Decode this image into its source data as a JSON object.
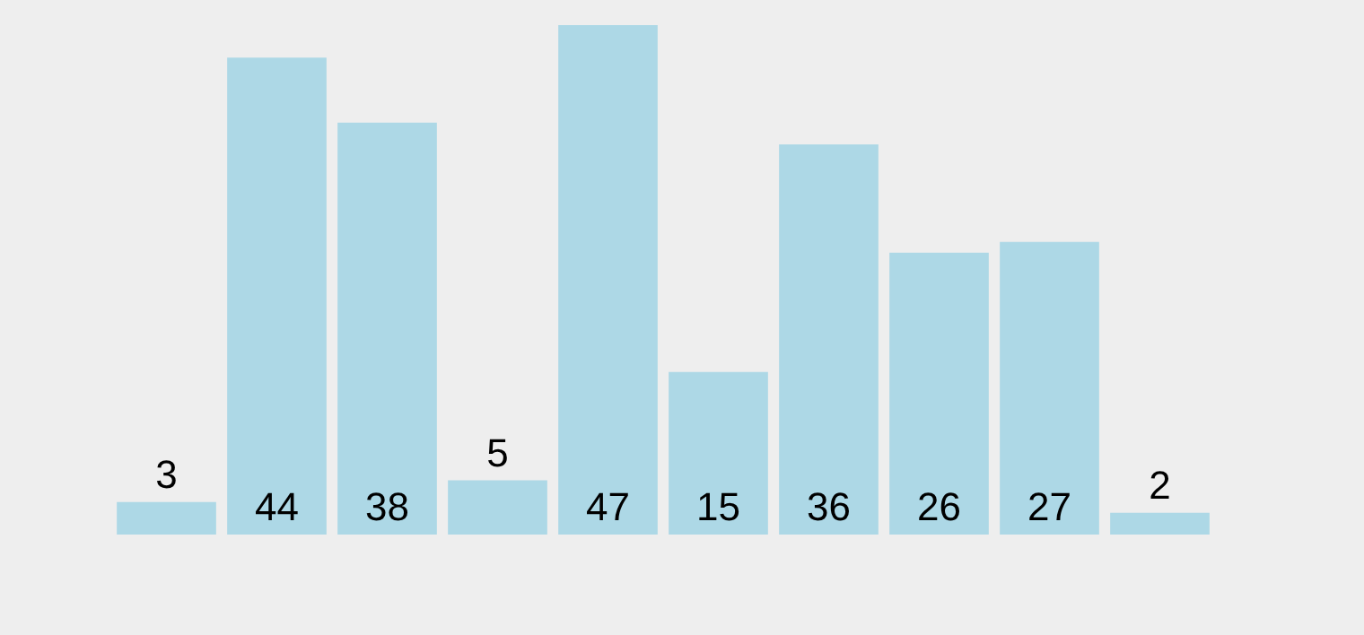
{
  "chart_data": {
    "type": "bar",
    "categories": [
      null,
      null,
      null,
      null,
      null,
      null,
      null,
      null,
      null,
      null
    ],
    "values": [
      3,
      44,
      38,
      5,
      47,
      15,
      36,
      26,
      27,
      2
    ],
    "color": "#add8e6",
    "data_labels": true
  }
}
